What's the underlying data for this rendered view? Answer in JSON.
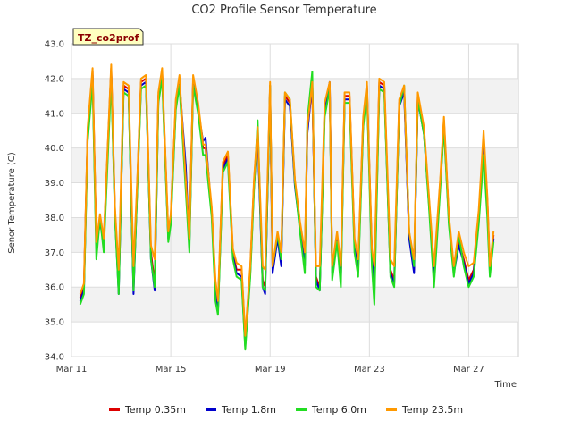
{
  "chart_data": {
    "type": "line",
    "title": "CO2 Profile Sensor Temperature",
    "xlabel": "Time",
    "ylabel": "Senor Temperature (C)",
    "annotation": "TZ_co2prof",
    "ylim": [
      34.0,
      43.0
    ],
    "y_ticks": [
      "34.0",
      "35.0",
      "36.0",
      "37.0",
      "38.0",
      "39.0",
      "40.0",
      "41.0",
      "42.0",
      "43.0"
    ],
    "xlim": [
      0,
      18
    ],
    "x_ticks": [
      {
        "label": "Mar 11",
        "value": 0
      },
      {
        "label": "Mar 15",
        "value": 4
      },
      {
        "label": "Mar 19",
        "value": 8
      },
      {
        "label": "Mar 23",
        "value": 12
      },
      {
        "label": "Mar 27",
        "value": 16
      }
    ],
    "grid": true,
    "legend_position": "bottom",
    "x": [
      0.35,
      0.5,
      0.65,
      0.85,
      1.0,
      1.15,
      1.3,
      1.6,
      1.75,
      1.9,
      2.1,
      2.3,
      2.5,
      2.65,
      2.8,
      3.0,
      3.2,
      3.35,
      3.5,
      3.65,
      3.9,
      4.0,
      4.2,
      4.35,
      4.6,
      4.75,
      4.9,
      5.1,
      5.3,
      5.4,
      5.65,
      5.8,
      5.9,
      6.1,
      6.3,
      6.5,
      6.65,
      6.85,
      7.0,
      7.2,
      7.35,
      7.5,
      7.7,
      7.8,
      8.0,
      8.1,
      8.3,
      8.45,
      8.6,
      8.8,
      9.0,
      9.2,
      9.4,
      9.5,
      9.7,
      9.85,
      10.0,
      10.2,
      10.4,
      10.5,
      10.7,
      10.85,
      11.0,
      11.2,
      11.4,
      11.55,
      11.75,
      11.9,
      12.1,
      12.2,
      12.4,
      12.6,
      12.85,
      13.0,
      13.2,
      13.4,
      13.6,
      13.8,
      13.95,
      14.2,
      14.4,
      14.6,
      14.85,
      15.0,
      15.2,
      15.4,
      15.6,
      15.8,
      16.0,
      16.2,
      16.4,
      16.6,
      16.75,
      16.85,
      17.0
    ],
    "series": [
      {
        "name": "Temp 0.35m",
        "color": "#dd0000",
        "values": [
          35.7,
          36.0,
          40.5,
          42.2,
          37.2,
          38.0,
          37.3,
          42.3,
          38.2,
          36.0,
          41.8,
          41.7,
          36.0,
          39.0,
          41.9,
          42.0,
          37.0,
          36.1,
          41.5,
          42.2,
          37.5,
          38.0,
          41.3,
          42.0,
          39.0,
          37.3,
          42.0,
          41.2,
          40.0,
          40.0,
          38.2,
          36.0,
          35.5,
          39.5,
          39.8,
          37.0,
          36.5,
          36.5,
          34.5,
          36.5,
          39.0,
          40.5,
          36.2,
          36.0,
          41.8,
          36.5,
          37.5,
          36.8,
          41.5,
          41.3,
          39.0,
          37.8,
          36.8,
          40.5,
          41.8,
          36.3,
          36.0,
          41.2,
          41.8,
          36.5,
          37.5,
          36.3,
          41.5,
          41.5,
          37.3,
          36.6,
          40.8,
          41.8,
          37.0,
          36.0,
          41.9,
          41.8,
          36.5,
          36.2,
          41.3,
          41.7,
          37.5,
          36.5,
          41.5,
          40.5,
          38.5,
          36.3,
          39.0,
          40.8,
          38.0,
          36.5,
          37.3,
          36.8,
          36.2,
          36.5,
          38.0,
          40.3,
          38.5,
          36.5,
          37.5
        ]
      },
      {
        "name": "Temp 1.8m",
        "color": "#0000cc",
        "values": [
          35.6,
          35.9,
          40.4,
          42.1,
          37.1,
          37.9,
          37.2,
          42.2,
          38.1,
          35.8,
          41.7,
          41.6,
          35.8,
          38.9,
          41.8,
          41.9,
          36.8,
          35.9,
          41.4,
          42.1,
          37.4,
          37.9,
          41.2,
          41.9,
          39.5,
          37.2,
          41.9,
          41.1,
          40.2,
          40.3,
          38.1,
          35.9,
          35.3,
          39.4,
          39.7,
          36.9,
          36.4,
          36.3,
          34.3,
          36.4,
          38.9,
          40.4,
          36.0,
          35.8,
          41.7,
          36.4,
          37.4,
          36.6,
          41.4,
          41.2,
          38.9,
          37.7,
          36.6,
          40.4,
          41.9,
          36.2,
          35.9,
          41.1,
          41.9,
          36.4,
          37.4,
          36.2,
          41.4,
          41.4,
          37.2,
          36.5,
          40.7,
          41.7,
          36.9,
          35.8,
          41.8,
          41.7,
          36.4,
          36.1,
          41.2,
          41.6,
          37.4,
          36.4,
          41.4,
          40.4,
          38.4,
          36.2,
          38.9,
          40.7,
          37.9,
          36.4,
          37.2,
          36.7,
          36.1,
          36.4,
          37.9,
          40.2,
          38.4,
          36.4,
          37.4
        ]
      },
      {
        "name": "Temp 6.0m",
        "color": "#22dd22",
        "values": [
          35.5,
          35.8,
          40.2,
          41.9,
          36.8,
          38.0,
          37.0,
          42.0,
          38.0,
          35.8,
          41.6,
          41.5,
          35.9,
          38.8,
          41.7,
          41.8,
          36.8,
          36.0,
          41.3,
          42.0,
          37.3,
          37.8,
          41.1,
          41.8,
          38.8,
          37.0,
          41.8,
          41.0,
          39.8,
          39.8,
          38.0,
          35.6,
          35.2,
          39.3,
          39.6,
          36.8,
          36.3,
          36.2,
          34.2,
          36.3,
          38.8,
          40.8,
          36.0,
          35.9,
          41.8,
          36.6,
          37.5,
          36.8,
          41.6,
          41.4,
          39.0,
          37.6,
          36.4,
          40.8,
          42.2,
          36.0,
          35.9,
          40.9,
          41.7,
          36.2,
          37.3,
          36.0,
          41.3,
          41.3,
          37.0,
          36.3,
          40.6,
          41.6,
          36.6,
          35.5,
          41.7,
          41.6,
          36.3,
          36.0,
          41.2,
          41.8,
          37.6,
          36.6,
          41.4,
          40.4,
          38.3,
          36.0,
          38.8,
          40.6,
          37.8,
          36.3,
          37.5,
          36.6,
          36.0,
          36.3,
          37.8,
          39.8,
          38.0,
          36.3,
          37.3
        ]
      },
      {
        "name": "Temp 23.5m",
        "color": "#ff9900",
        "values": [
          35.8,
          36.1,
          40.6,
          42.3,
          37.3,
          38.1,
          37.4,
          42.4,
          38.3,
          36.5,
          41.9,
          41.8,
          36.6,
          39.1,
          42.0,
          42.1,
          37.2,
          36.8,
          41.6,
          42.3,
          37.6,
          38.1,
          41.4,
          42.1,
          39.1,
          37.4,
          42.1,
          41.3,
          40.1,
          40.1,
          38.3,
          36.2,
          35.6,
          39.6,
          39.9,
          37.1,
          36.7,
          36.6,
          34.6,
          36.6,
          39.1,
          40.6,
          36.6,
          36.5,
          41.9,
          36.6,
          37.6,
          37.0,
          41.6,
          41.4,
          39.1,
          37.9,
          37.0,
          40.6,
          41.9,
          36.6,
          36.6,
          41.3,
          41.9,
          36.6,
          37.6,
          36.6,
          41.6,
          41.6,
          37.4,
          36.8,
          40.9,
          41.9,
          37.1,
          36.6,
          42.0,
          41.9,
          36.8,
          36.6,
          41.4,
          41.8,
          37.6,
          36.8,
          41.6,
          40.6,
          38.6,
          36.6,
          39.1,
          40.9,
          38.1,
          36.6,
          37.6,
          37.0,
          36.6,
          36.7,
          38.2,
          40.5,
          38.6,
          36.6,
          37.6
        ]
      }
    ]
  }
}
